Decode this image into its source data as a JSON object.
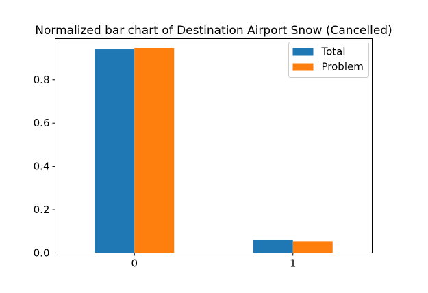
{
  "chart_data": {
    "type": "bar",
    "title": "Normalized bar chart of Destination Airport Snow (Cancelled)",
    "xlabel": "",
    "ylabel": "",
    "categories": [
      "0",
      "1"
    ],
    "series": [
      {
        "name": "Total",
        "color": "#1f77b4",
        "values": [
          0.941,
          0.059
        ]
      },
      {
        "name": "Problem",
        "color": "#ff7f0e",
        "values": [
          0.946,
          0.054
        ]
      }
    ],
    "ylim": [
      0,
      0.99
    ],
    "yticks": [
      0.0,
      0.2,
      0.4,
      0.6,
      0.8
    ],
    "ytick_labels": [
      "0.0",
      "0.2",
      "0.4",
      "0.6",
      "0.8"
    ],
    "grid": false,
    "legend_position": "top-right"
  }
}
